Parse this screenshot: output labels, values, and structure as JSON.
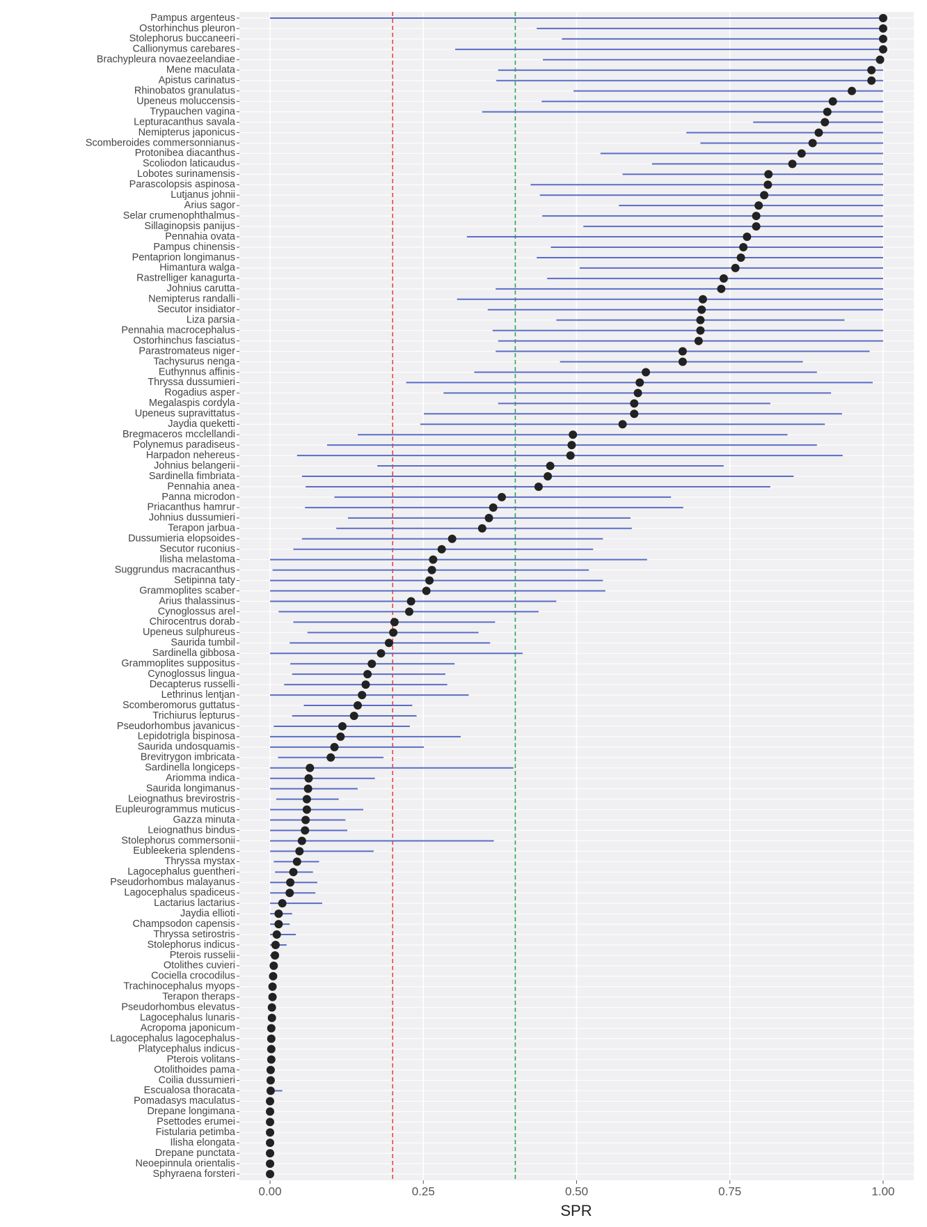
{
  "chart_data": {
    "type": "interval_dot",
    "x_label": "SPR",
    "categories": [
      "Pampus argenteus",
      "Ostorhinchus pleuron",
      "Stolephorus buccaneeri",
      "Callionymus carebares",
      "Brachypleura novaezeelandiae",
      "Mene maculata",
      "Apistus carinatus",
      "Rhinobatos granulatus",
      "Upeneus moluccensis",
      "Trypauchen vagina",
      "Lepturacanthus savala",
      "Nemipterus japonicus",
      "Scomberoides commersonnianus",
      "Protonibea diacanthus",
      "Scoliodon laticaudus",
      "Lobotes surinamensis",
      "Parascolopsis aspinosa",
      "Lutjanus johnii",
      "Arius sagor",
      "Selar crumenophthalmus",
      "Sillaginopsis panijus",
      "Pennahia ovata",
      "Pampus chinensis",
      "Pentaprion longimanus",
      "Himantura walga",
      "Rastrelliger kanagurta",
      "Johnius carutta",
      "Nemipterus randalli",
      "Secutor insidiator",
      "Liza parsia",
      "Pennahia macrocephalus",
      "Ostorhinchus fasciatus",
      "Parastromateus niger",
      "Tachysurus nenga",
      "Euthynnus affinis",
      "Thryssa dussumieri",
      "Rogadius asper",
      "Megalaspis cordyla",
      "Upeneus supravittatus",
      "Jaydia queketti",
      "Bregmaceros mcclellandi",
      "Polynemus paradiseus",
      "Harpadon nehereus",
      "Johnius belangerii",
      "Sardinella fimbriata",
      "Pennahia anea",
      "Panna microdon",
      "Priacanthus hamrur",
      "Johnius dussumieri",
      "Terapon jarbua",
      "Dussumieria elopsoides",
      "Secutor ruconius",
      "Ilisha melastoma",
      "Suggrundus macracanthus",
      "Setipinna taty",
      "Grammoplites scaber",
      "Arius thalassinus",
      "Cynoglossus arel",
      "Chirocentrus dorab",
      "Upeneus sulphureus",
      "Saurida tumbil",
      "Sardinella gibbosa",
      "Grammoplites suppositus",
      "Cynoglossus lingua",
      "Decapterus russelli",
      "Lethrinus lentjan",
      "Scomberomorus guttatus",
      "Trichiurus lepturus",
      "Pseudorhombus javanicus",
      "Lepidotrigla bispinosa",
      "Saurida undosquamis",
      "Brevitrygon imbricata",
      "Sardinella longiceps",
      "Ariomma indica",
      "Saurida longimanus",
      "Leiognathus brevirostris",
      "Eupleurogrammus muticus",
      "Gazza minuta",
      "Leiognathus bindus",
      "Stolephorus commersonii",
      "Eubleekeria splendens",
      "Thryssa mystax",
      "Lagocephalus guentheri",
      "Pseudorhombus malayanus",
      "Lagocephalus spadiceus",
      "Lactarius lactarius",
      "Jaydia ellioti",
      "Champsodon capensis",
      "Thryssa setirostris",
      "Stolephorus indicus",
      "Pterois russelii",
      "Otolithes cuvieri",
      "Cociella crocodilus",
      "Trachinocephalus myops",
      "Terapon theraps",
      "Pseudorhombus elevatus",
      "Lagocephalus lunaris",
      "Acropoma japonicum",
      "Lagocephalus lagocephalus",
      "Platycephalus indicus",
      "Pterois volitans",
      "Otolithoides pama",
      "Coilia dussumieri",
      "Escualosa thoracata",
      "Pomadasys maculatus",
      "Drepane longimana",
      "Psettodes erumei",
      "Fistularia petimba",
      "Ilisha elongata",
      "Drepane punctata",
      "Neoepinnula orientalis",
      "Sphyraena forsteri"
    ],
    "values": [
      1.0,
      1.0,
      1.0,
      1.0,
      0.995,
      0.981,
      0.981,
      0.949,
      0.918,
      0.909,
      0.905,
      0.895,
      0.885,
      0.867,
      0.852,
      0.813,
      0.812,
      0.806,
      0.797,
      0.793,
      0.793,
      0.778,
      0.772,
      0.768,
      0.759,
      0.74,
      0.736,
      0.706,
      0.704,
      0.702,
      0.702,
      0.699,
      0.673,
      0.673,
      0.613,
      0.603,
      0.6,
      0.594,
      0.594,
      0.575,
      0.494,
      0.492,
      0.49,
      0.457,
      0.453,
      0.438,
      0.378,
      0.364,
      0.357,
      0.346,
      0.297,
      0.28,
      0.266,
      0.264,
      0.26,
      0.255,
      0.23,
      0.227,
      0.203,
      0.201,
      0.194,
      0.181,
      0.166,
      0.159,
      0.156,
      0.15,
      0.143,
      0.137,
      0.118,
      0.115,
      0.105,
      0.099,
      0.065,
      0.063,
      0.062,
      0.06,
      0.06,
      0.058,
      0.057,
      0.052,
      0.048,
      0.044,
      0.038,
      0.033,
      0.032,
      0.02,
      0.014,
      0.014,
      0.011,
      0.009,
      0.008,
      0.006,
      0.005,
      0.004,
      0.004,
      0.003,
      0.003,
      0.002,
      0.002,
      0.002,
      0.002,
      0.001,
      0.001,
      0.001,
      0,
      0,
      0,
      0,
      0,
      0,
      0,
      0
    ],
    "lower": [
      0,
      0.435,
      0.476,
      0.302,
      0.445,
      0.372,
      0.369,
      0.495,
      0.443,
      0.346,
      0.788,
      0.679,
      0.702,
      0.539,
      0.623,
      0.575,
      0.425,
      0.44,
      0.569,
      0.444,
      0.511,
      0.321,
      0.458,
      0.435,
      0.505,
      0.452,
      0.368,
      0.305,
      0.355,
      0.467,
      0.363,
      0.372,
      0.368,
      0.473,
      0.333,
      0.222,
      0.283,
      0.372,
      0.251,
      0.245,
      0.143,
      0.093,
      0.044,
      0.175,
      0.052,
      0.058,
      0.105,
      0.057,
      0.127,
      0.108,
      0.052,
      0.038,
      0,
      0.004,
      0,
      0,
      0,
      0.014,
      0.038,
      0.061,
      0.032,
      0,
      0.033,
      0.036,
      0.023,
      0,
      0.055,
      0.036,
      0.006,
      0,
      0,
      0.013,
      0,
      0,
      0,
      0.01,
      0,
      0,
      0,
      0,
      0,
      0.006,
      0.008,
      0,
      0,
      0,
      0,
      0,
      0,
      0,
      0,
      0,
      0,
      0,
      0,
      0,
      0,
      0,
      0,
      0,
      0,
      0,
      0,
      0,
      0,
      0,
      0,
      0,
      0,
      0,
      0,
      0
    ],
    "upper": [
      1,
      1,
      1,
      1,
      1,
      1,
      1,
      1,
      1,
      1,
      1,
      1,
      1,
      1,
      1,
      1,
      1,
      1,
      1,
      1,
      1,
      1,
      1,
      1,
      1,
      1,
      1,
      1,
      1,
      0.937,
      1,
      1,
      0.978,
      0.869,
      0.892,
      0.983,
      0.915,
      0.816,
      0.933,
      0.905,
      0.844,
      0.892,
      0.934,
      0.74,
      0.854,
      0.816,
      0.654,
      0.674,
      0.588,
      0.59,
      0.543,
      0.527,
      0.615,
      0.52,
      0.543,
      0.547,
      0.467,
      0.438,
      0.367,
      0.34,
      0.359,
      0.412,
      0.301,
      0.286,
      0.289,
      0.324,
      0.232,
      0.239,
      0.228,
      0.311,
      0.251,
      0.185,
      0.397,
      0.171,
      0.143,
      0.112,
      0.152,
      0.123,
      0.126,
      0.365,
      0.169,
      0.08,
      0.07,
      0.077,
      0.074,
      0.085,
      0.036,
      0.032,
      0.042,
      0.027,
      0.013,
      0.01,
      0.008,
      0.006,
      0.006,
      0.005,
      0.005,
      0.004,
      0.004,
      0.004,
      0.003,
      0.003,
      0.003,
      0.02,
      0.002,
      0.002,
      0.002,
      0.002,
      0.002,
      0.002,
      0.002,
      0.002
    ],
    "color": "#222222",
    "interval_color": "#5a6cc6",
    "reference_lines": [
      {
        "value": 0.2,
        "color": "#e8453c"
      },
      {
        "value": 0.4,
        "color": "#2fa84f"
      }
    ],
    "xlim": [
      -0.05,
      1.05
    ],
    "xticks": [
      {
        "value": 0,
        "label": "0.00"
      },
      {
        "value": 0.25,
        "label": "0.25"
      },
      {
        "value": 0.5,
        "label": "0.50"
      },
      {
        "value": 0.75,
        "label": "0.75"
      },
      {
        "value": 1,
        "label": "1.00"
      }
    ],
    "grid": true
  }
}
